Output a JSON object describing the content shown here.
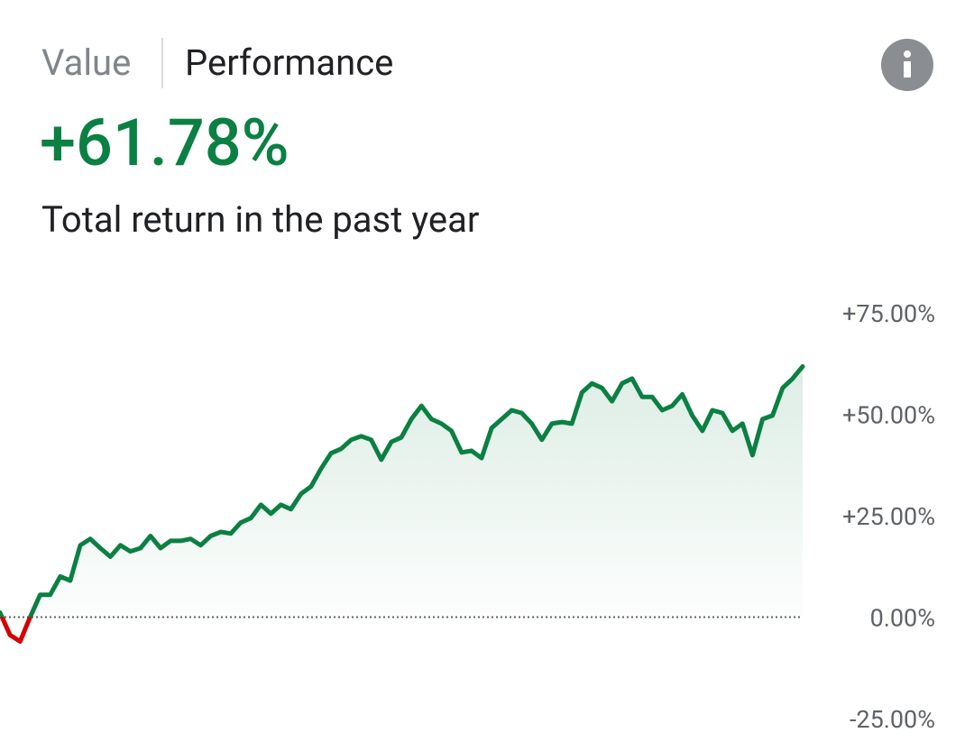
{
  "tabs": [
    "Value",
    "Performance"
  ],
  "headline": "+61.78%",
  "subtitle": "Total return in the past year",
  "chart_data": {
    "type": "line",
    "values": [
      1.1,
      -4.4,
      -6,
      0,
      5.5,
      5.5,
      10,
      9,
      17.7,
      19.3,
      17,
      14.9,
      17.7,
      16.2,
      17,
      20,
      17,
      18.8,
      18.8,
      19.3,
      17.7,
      20,
      21,
      20.6,
      23.3,
      24.4,
      27.7,
      25.5,
      27.7,
      26.6,
      30.4,
      32.2,
      36.6,
      40.4,
      41.5,
      43.7,
      44.6,
      43.7,
      38.8,
      43.2,
      44.3,
      48.8,
      52.1,
      48.8,
      47.7,
      45.9,
      40.6,
      41,
      39.2,
      46.6,
      48.8,
      51,
      50.3,
      47.7,
      43.7,
      47.7,
      48.1,
      47.7,
      55.4,
      57.6,
      56.5,
      53.2,
      57.6,
      58.8,
      54.3,
      54.3,
      51,
      52.1,
      54.9,
      49.7,
      45.9,
      51,
      50.3,
      45.9,
      47.7,
      39.9,
      48.8,
      49.7,
      56.5,
      58.8,
      61.78
    ],
    "color": "#0b8043",
    "negative_color": "#d50000",
    "ylim": [
      -25,
      75
    ],
    "yticks": [
      {
        "value": -25,
        "label": "-25.00%"
      },
      {
        "value": 0,
        "label": "0.00%"
      },
      {
        "value": 25,
        "label": "+25.00%"
      },
      {
        "value": 50,
        "label": "+50.00%"
      },
      {
        "value": 75,
        "label": "+75.00%"
      }
    ],
    "zero_line": true
  }
}
